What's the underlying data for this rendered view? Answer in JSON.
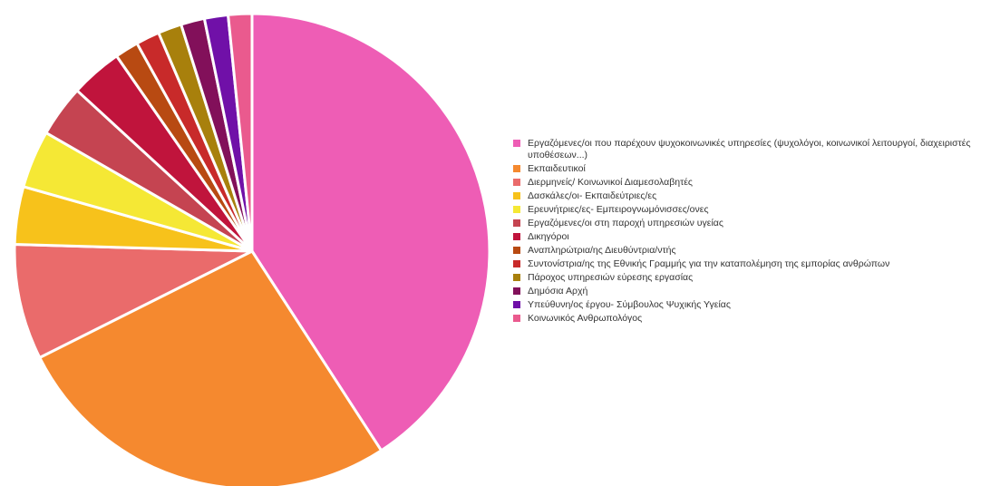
{
  "chart_data": {
    "type": "pie",
    "title": "",
    "legend_position": "right",
    "categories": [
      "Εργαζόμενες/οι που παρέχουν ψυχοκοινωνικές υπηρεσίες (ψυχολόγοι, κοινωνικοί λειτουργοί, διαχειριστές υποθέσεων...)",
      "Εκπαιδευτικοί",
      "Διερμηνείς/ Κοινωνικοί Διαμεσολαβητές",
      "Δασκάλες/οι- Εκπαιδεύτριες/ες",
      "Ερευνήτριες/ες- Εμπειρογνωμόνισσες/ονες",
      "Εργαζόμενες/οι στη παροχή υπηρεσιών υγείας",
      "Δικηγόροι",
      "Αναπληρώτρια/ης Διευθύντρια/ντής",
      "Συντονίστρια/ης της Εθνικής Γραμμής για την καταπολέμηση της εμπορίας ανθρώπων",
      "Πάροχος υπηρεσιών εύρεσης εργασίας",
      "Δημόσια Αρχή",
      "Υπεύθυνη/ος έργου- Σύμβουλος Ψυχικής Υγείας",
      "Κοινωνικός Ανθρωπολόγος"
    ],
    "values": [
      40.6,
      26.6,
      7.8,
      3.9,
      3.9,
      3.5,
      3.5,
      1.6,
      1.6,
      1.6,
      1.6,
      1.6,
      1.6
    ],
    "colors": [
      "#ee5db5",
      "#f5892f",
      "#ea6b6b",
      "#f7c21b",
      "#f5e835",
      "#c54451",
      "#c0143c",
      "#b84a12",
      "#c82a2a",
      "#a8800c",
      "#82105a",
      "#7010a8",
      "#ea5a8e"
    ]
  }
}
